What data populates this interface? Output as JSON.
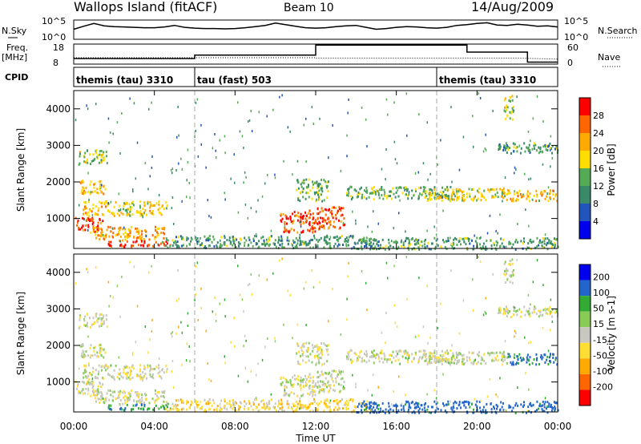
{
  "header": {
    "title": "Wallops Island (fitACF)",
    "beam": "Beam 10",
    "date": "14/Aug/2009"
  },
  "time_axis": {
    "label": "Time UT",
    "ticks": [
      "00:00",
      "04:00",
      "08:00",
      "12:00",
      "16:00",
      "20:00",
      "00:00"
    ],
    "range_hours": [
      0,
      24
    ]
  },
  "top_panels": {
    "nsky": {
      "label": "N.Sky",
      "left_ticks": [
        "10^5",
        "10^0"
      ],
      "right_ticks": [
        "10^5",
        "10^0"
      ],
      "right_label": "N.Search",
      "samples_log10": [
        2.6,
        3.4,
        4.1,
        3.5,
        3.3,
        3.2,
        3.1,
        3.0,
        3.0,
        3.2,
        3.6,
        3.1,
        2.9,
        2.8,
        2.8,
        2.7,
        2.8,
        3.0,
        3.3,
        3.6,
        4.2,
        3.8,
        3.4,
        3.0,
        2.9,
        3.0,
        3.3,
        3.5,
        3.6,
        3.1,
        2.6,
        2.8,
        3.1,
        3.3,
        3.2,
        3.0,
        2.9,
        3.1,
        3.6,
        3.8,
        4.1,
        4.3,
        3.7,
        3.6,
        3.9,
        3.7,
        3.4,
        3.5,
        3.2
      ]
    },
    "freq": {
      "label": "Freq.",
      "unit": "[MHz]",
      "left_ticks": [
        "18",
        "8"
      ],
      "right_ticks": [
        "60",
        "0"
      ],
      "right_label": "Nave",
      "steps": [
        [
          0,
          0.28
        ],
        [
          6,
          0.45
        ],
        [
          12,
          0.95
        ],
        [
          19.5,
          0.6
        ],
        [
          22.5,
          0.1
        ],
        [
          24,
          0.1
        ]
      ]
    },
    "cpid": {
      "label": "CPID",
      "segments": [
        {
          "start": 0,
          "end": 6,
          "text": "themis (tau) 3310"
        },
        {
          "start": 6,
          "end": 18,
          "text": "tau (fast) 503"
        },
        {
          "start": 18,
          "end": 24,
          "text": "themis (tau) 3310"
        }
      ]
    }
  },
  "range_axis": {
    "label": "Slant Range [km]",
    "ticks": [
      1000,
      2000,
      3000,
      4000
    ],
    "range_km": [
      180,
      4500
    ]
  },
  "power_panel": {
    "colorbar_label": "Power [dB]",
    "colorbar_ticks": [
      4,
      8,
      12,
      16,
      20,
      24,
      28
    ],
    "colors": [
      "#0000ee",
      "#2255bb",
      "#3a8a6a",
      "#55aa55",
      "#ffdd00",
      "#ffaa00",
      "#ff6600",
      "#ff0000"
    ]
  },
  "velocity_panel": {
    "colorbar_label": "Velocity [m s-1]",
    "colorbar_ticks": [
      "200",
      "100",
      "50",
      "15",
      "-15",
      "-50",
      "-100",
      "-200"
    ],
    "colors": [
      "#0000ee",
      "#2266cc",
      "#33aa33",
      "#88cc55",
      "#c8c8c0",
      "#ffdd33",
      "#ffaa00",
      "#ff6600",
      "#ff0000"
    ]
  },
  "chart_data": {
    "type": "heatmap",
    "x_range_hours": [
      0,
      24
    ],
    "y_range_km": [
      180,
      4500
    ],
    "echo_regions": [
      {
        "t0": 0.2,
        "t1": 1.6,
        "r0": 2500,
        "r1": 2900,
        "power": 14,
        "velocity": 0
      },
      {
        "t0": 0.3,
        "t1": 1.6,
        "r0": 1700,
        "r1": 2100,
        "power": 18,
        "velocity": 0
      },
      {
        "t0": 0.4,
        "t1": 4.6,
        "r0": 1100,
        "r1": 1500,
        "power": 18,
        "velocity": 0
      },
      {
        "t0": 0.0,
        "t1": 1.4,
        "r0": 650,
        "r1": 1050,
        "power": 26,
        "velocity": -5
      },
      {
        "t0": 0.8,
        "t1": 4.5,
        "r0": 420,
        "r1": 800,
        "power": 20,
        "velocity": -5
      },
      {
        "t0": 1.5,
        "t1": 4.8,
        "r0": 260,
        "r1": 420,
        "power": 26,
        "velocity": 60
      },
      {
        "t0": 4.5,
        "t1": 14.5,
        "r0": 220,
        "r1": 560,
        "power": 10,
        "velocity": -30
      },
      {
        "t0": 10.2,
        "t1": 12.2,
        "r0": 650,
        "r1": 1250,
        "power": 26,
        "velocity": 0
      },
      {
        "t0": 12.0,
        "t1": 13.4,
        "r0": 750,
        "r1": 1350,
        "power": 24,
        "velocity": 0
      },
      {
        "t0": 11.0,
        "t1": 12.6,
        "r0": 1500,
        "r1": 2100,
        "power": 12,
        "velocity": 0
      },
      {
        "t0": 13.5,
        "t1": 19.0,
        "r0": 1550,
        "r1": 1900,
        "power": 12,
        "velocity": 0
      },
      {
        "t0": 17.5,
        "t1": 21.5,
        "r0": 1500,
        "r1": 1850,
        "power": 16,
        "velocity": 0
      },
      {
        "t0": 21.5,
        "t1": 24.0,
        "r0": 1500,
        "r1": 1800,
        "power": 18,
        "velocity": 80
      },
      {
        "t0": 21.0,
        "t1": 24.0,
        "r0": 2800,
        "r1": 3100,
        "power": 10,
        "velocity": 0
      },
      {
        "t0": 21.3,
        "t1": 21.8,
        "r0": 3700,
        "r1": 4400,
        "power": 14,
        "velocity": 0
      },
      {
        "t0": 14.0,
        "t1": 24.0,
        "r0": 180,
        "r1": 500,
        "power": 10,
        "velocity": 100
      }
    ]
  }
}
